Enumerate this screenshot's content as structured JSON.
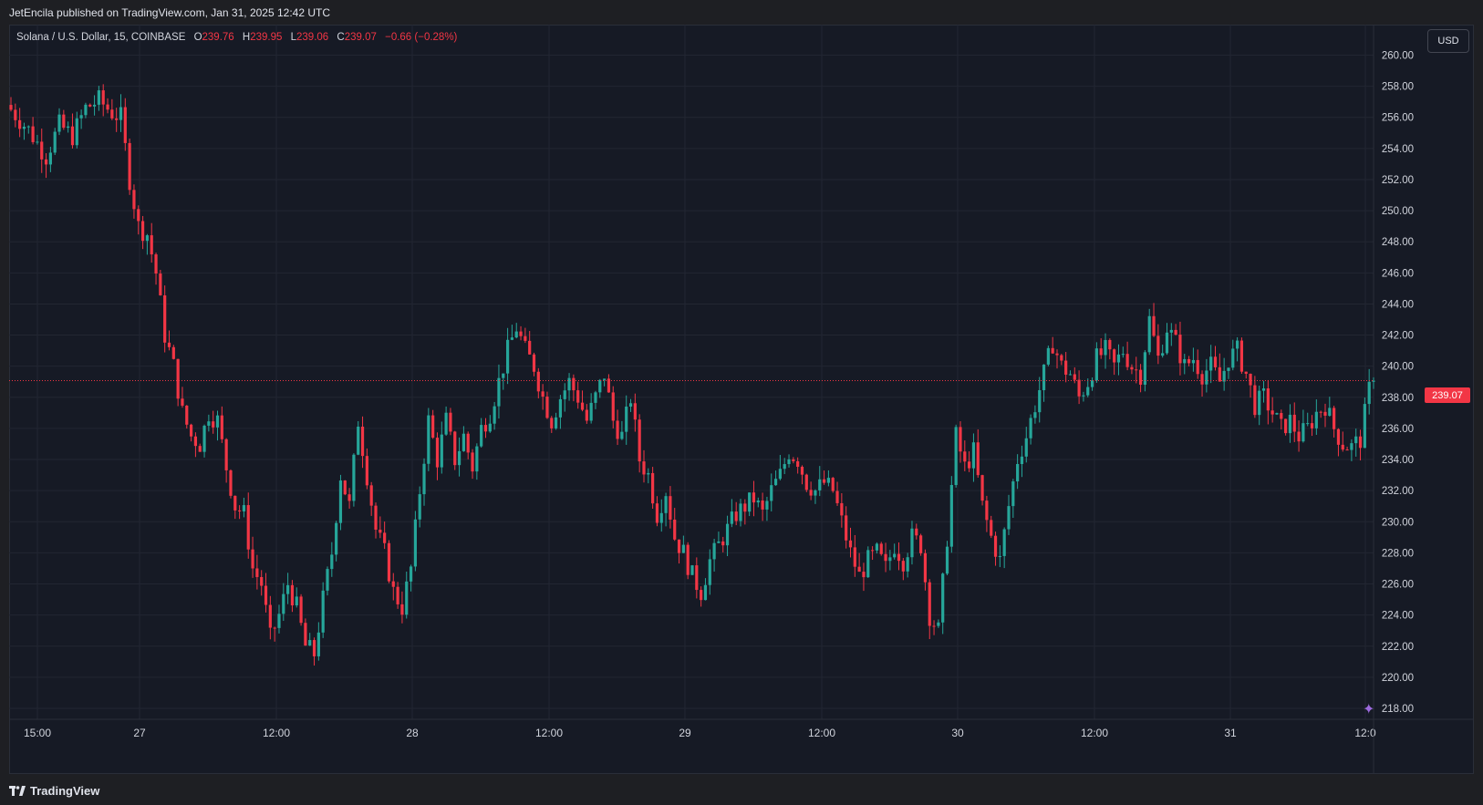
{
  "header": {
    "published_text": "JetEncila published on TradingView.com, Jan 31, 2025 12:42 UTC"
  },
  "legend": {
    "symbol": "Solana / U.S. Dollar, 15, COINBASE",
    "o_label": "O",
    "o_value": "239.76",
    "h_label": "H",
    "h_value": "239.95",
    "l_label": "L",
    "l_value": "239.06",
    "c_label": "C",
    "c_value": "239.07",
    "change": "−0.66 (−0.28%)"
  },
  "currency_button": "USD",
  "last_price_label": "239.07",
  "footer": {
    "brand": "TradingView"
  },
  "colors": {
    "background": "#161a25",
    "grid": "#222632",
    "up": "#26a69a",
    "down": "#f23645",
    "text": "#d1d4dc"
  },
  "chart_data": {
    "type": "candlestick",
    "interval": "15",
    "ylim": [
      217,
      261
    ],
    "y_ticks": [
      218,
      220,
      222,
      224,
      226,
      228,
      230,
      232,
      234,
      236,
      238,
      240,
      242,
      244,
      246,
      248,
      250,
      252,
      254,
      256,
      258,
      260
    ],
    "y_tick_labels": [
      "218.00",
      "220.00",
      "222.00",
      "224.00",
      "226.00",
      "228.00",
      "230.00",
      "232.00",
      "234.00",
      "236.00",
      "238.00",
      "240.00",
      "242.00",
      "244.00",
      "246.00",
      "248.00",
      "250.00",
      "252.00",
      "254.00",
      "256.00",
      "258.00",
      "260.00"
    ],
    "x_tick_labels": [
      "15:00",
      "27",
      "12:00",
      "28",
      "12:00",
      "29",
      "12:00",
      "30",
      "12:00",
      "31",
      "12:0"
    ],
    "last_price": 239.07,
    "price_path": [
      [
        0,
        256.5
      ],
      [
        4,
        255.2
      ],
      [
        8,
        253.5
      ],
      [
        11,
        255.5
      ],
      [
        14,
        254.8
      ],
      [
        17,
        256.6
      ],
      [
        20,
        257.1
      ],
      [
        23,
        256.3
      ],
      [
        25,
        256.0
      ],
      [
        27,
        252
      ],
      [
        29,
        249
      ],
      [
        31,
        248.5
      ],
      [
        33,
        246
      ],
      [
        35,
        242
      ],
      [
        37,
        240
      ],
      [
        39,
        237
      ],
      [
        41,
        235.5
      ],
      [
        43,
        235
      ],
      [
        45,
        237
      ],
      [
        47,
        236.5
      ],
      [
        49,
        233.5
      ],
      [
        51,
        231
      ],
      [
        53,
        230.5
      ],
      [
        55,
        227
      ],
      [
        57,
        226
      ],
      [
        59,
        222.5
      ],
      [
        61,
        224
      ],
      [
        63,
        226
      ],
      [
        65,
        224.5
      ],
      [
        67,
        222
      ],
      [
        69,
        221.5
      ],
      [
        71,
        225
      ],
      [
        73,
        228
      ],
      [
        75,
        233
      ],
      [
        77,
        231
      ],
      [
        79,
        236.5
      ],
      [
        81,
        233
      ],
      [
        83,
        229.5
      ],
      [
        85,
        228
      ],
      [
        87,
        225.5
      ],
      [
        89,
        224.5
      ],
      [
        91,
        227
      ],
      [
        93,
        232
      ],
      [
        95,
        236.5
      ],
      [
        97,
        234
      ],
      [
        99,
        236.5
      ],
      [
        101,
        234
      ],
      [
        103,
        235.5
      ],
      [
        105,
        233.5
      ],
      [
        107,
        236
      ],
      [
        109,
        237
      ],
      [
        111,
        239
      ],
      [
        113,
        241
      ],
      [
        115,
        242.5
      ],
      [
        117,
        241
      ],
      [
        119,
        240
      ],
      [
        121,
        238
      ],
      [
        123,
        236.5
      ],
      [
        125,
        238
      ],
      [
        127,
        239
      ],
      [
        129,
        238
      ],
      [
        131,
        236.5
      ],
      [
        133,
        238
      ],
      [
        135,
        239.5
      ],
      [
        137,
        236.5
      ],
      [
        139,
        235.5
      ],
      [
        141,
        238
      ],
      [
        143,
        234
      ],
      [
        145,
        233
      ],
      [
        147,
        230.5
      ],
      [
        149,
        232
      ],
      [
        151,
        229
      ],
      [
        153,
        228
      ],
      [
        155,
        226.5
      ],
      [
        157,
        225.5
      ],
      [
        159,
        227.5
      ],
      [
        161,
        228.5
      ],
      [
        163,
        229.5
      ],
      [
        165,
        230.5
      ],
      [
        167,
        231
      ],
      [
        169,
        231.5
      ],
      [
        171,
        230.5
      ],
      [
        173,
        232
      ],
      [
        175,
        233
      ],
      [
        177,
        234.5
      ],
      [
        179,
        234
      ],
      [
        181,
        232.5
      ],
      [
        183,
        232
      ],
      [
        185,
        232.5
      ],
      [
        187,
        232
      ],
      [
        189,
        230
      ],
      [
        191,
        228
      ],
      [
        193,
        226.5
      ],
      [
        195,
        227.5
      ],
      [
        197,
        228
      ],
      [
        199,
        227
      ],
      [
        201,
        228.5
      ],
      [
        203,
        227.5
      ],
      [
        205,
        229
      ],
      [
        207,
        228.5
      ],
      [
        209,
        224
      ],
      [
        211,
        223
      ],
      [
        213,
        229
      ],
      [
        215,
        235.5
      ],
      [
        217,
        233.5
      ],
      [
        219,
        234.5
      ],
      [
        221,
        231
      ],
      [
        223,
        229
      ],
      [
        225,
        227.5
      ],
      [
        227,
        231
      ],
      [
        229,
        234
      ],
      [
        231,
        235.5
      ],
      [
        233,
        237.5
      ],
      [
        235,
        239.5
      ],
      [
        237,
        241.5
      ],
      [
        239,
        240
      ],
      [
        241,
        239.5
      ],
      [
        243,
        238
      ],
      [
        245,
        239
      ],
      [
        247,
        240.5
      ],
      [
        249,
        241
      ],
      [
        251,
        240
      ],
      [
        253,
        241
      ],
      [
        255,
        240
      ],
      [
        257,
        239.5
      ],
      [
        259,
        243
      ],
      [
        261,
        240.5
      ],
      [
        263,
        242.5
      ],
      [
        265,
        241.5
      ],
      [
        267,
        240
      ],
      [
        269,
        240.5
      ],
      [
        271,
        239.5
      ],
      [
        273,
        240
      ],
      [
        275,
        239
      ],
      [
        277,
        240.5
      ],
      [
        279,
        241
      ],
      [
        281,
        239.5
      ],
      [
        283,
        237.5
      ],
      [
        285,
        238
      ],
      [
        287,
        237
      ],
      [
        289,
        236
      ],
      [
        291,
        236.5
      ],
      [
        293,
        235.5
      ],
      [
        295,
        236
      ],
      [
        297,
        237
      ],
      [
        299,
        237.5
      ],
      [
        301,
        236
      ],
      [
        303,
        235
      ],
      [
        305,
        234.8
      ],
      [
        307,
        235.3
      ],
      [
        309,
        238.5
      ],
      [
        310,
        239.07
      ]
    ]
  }
}
